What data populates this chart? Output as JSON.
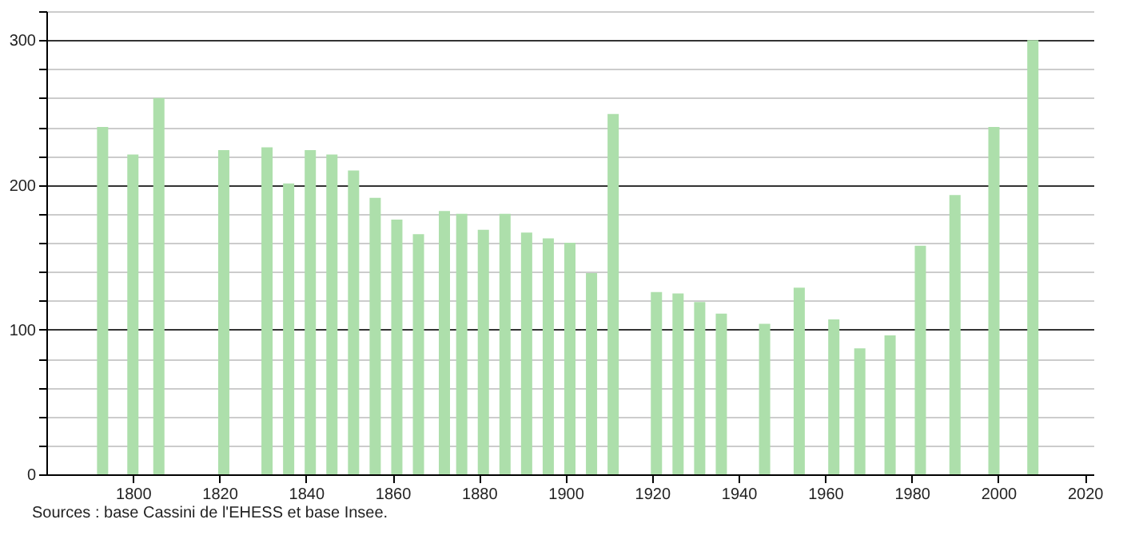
{
  "chart_data": {
    "type": "bar",
    "x": [
      1793,
      1800,
      1806,
      1821,
      1831,
      1836,
      1841,
      1846,
      1851,
      1856,
      1861,
      1866,
      1872,
      1876,
      1881,
      1886,
      1891,
      1896,
      1901,
      1906,
      1911,
      1921,
      1926,
      1931,
      1936,
      1946,
      1954,
      1962,
      1968,
      1975,
      1982,
      1990,
      1999,
      2008
    ],
    "values": [
      240,
      221,
      260,
      224,
      226,
      201,
      224,
      221,
      210,
      191,
      176,
      166,
      182,
      180,
      169,
      180,
      167,
      163,
      160,
      139,
      249,
      126,
      125,
      119,
      111,
      104,
      129,
      107,
      87,
      96,
      158,
      193,
      240,
      300
    ],
    "color": "#addfab",
    "xlim": [
      1780,
      2022
    ],
    "xticks": [
      1800,
      1820,
      1840,
      1860,
      1880,
      1900,
      1920,
      1940,
      1960,
      1980,
      2000,
      2020
    ],
    "ylim": [
      0,
      320
    ],
    "yticks": [
      0,
      {
        "value": 20,
        "label": null
      },
      {
        "value": 40,
        "label": null
      },
      {
        "value": 60,
        "label": null
      },
      {
        "value": 80,
        "label": null
      },
      100,
      {
        "value": 120,
        "label": null
      },
      {
        "value": 140,
        "label": null
      },
      {
        "value": 160,
        "label": null
      },
      {
        "value": 180,
        "label": null
      },
      200,
      {
        "value": 220,
        "label": null
      },
      {
        "value": 240,
        "label": null
      },
      {
        "value": 260,
        "label": null
      },
      {
        "value": 280,
        "label": null
      },
      300,
      {
        "value": 320,
        "label": null
      }
    ],
    "grid": "y",
    "annotations": [
      "Sources : base Cassini de l'EHESS et base Insee."
    ]
  }
}
